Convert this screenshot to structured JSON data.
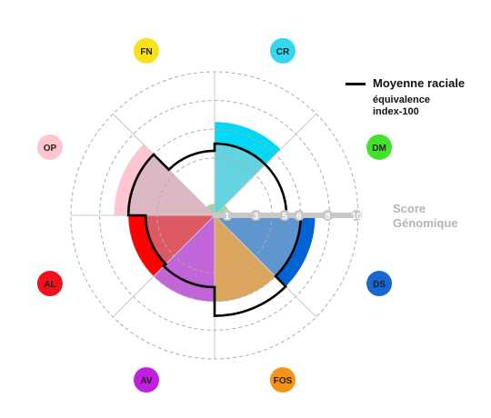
{
  "chart_data": {
    "type": "polar-bar",
    "title": "",
    "legend": {
      "line_label": "Moyenne raciale",
      "subtitle_1": "équivalence",
      "subtitle_2": "index-100",
      "placement": "top-right"
    },
    "axis_title_1": "Score",
    "axis_title_2": "Génomique",
    "r_ticks": [
      1,
      3,
      5,
      6,
      8,
      10
    ],
    "rmax": 10,
    "rings_dashed": [
      4,
      6,
      8,
      10
    ],
    "grid": true,
    "categories": [
      {
        "code": "CR",
        "value": 6.5,
        "average": 5,
        "color": "#00d8f5",
        "inner_color": "#62d3df",
        "badge": "#33d8f0"
      },
      {
        "code": "DM",
        "value": 1,
        "average": 5,
        "color": "#00c800",
        "inner_color": "#9cd6a0",
        "badge": "#44e02a"
      },
      {
        "code": "DS",
        "value": 7,
        "average": 6,
        "color": "#0064d2",
        "inner_color": "#5f96d0",
        "badge": "#1766d2"
      },
      {
        "code": "FOS",
        "value": 6,
        "average": 7,
        "color": "#dca660",
        "inner_color": "#dca660",
        "badge": "#f39417"
      },
      {
        "code": "AV",
        "value": 6,
        "average": 5,
        "color": "#c265d9",
        "inner_color": "#c265d9",
        "badge": "#c21ee0"
      },
      {
        "code": "AL",
        "value": 6,
        "average": 4.8,
        "color": "#ff0000",
        "inner_color": "#de5864",
        "badge": "#f0101e"
      },
      {
        "code": "OP",
        "value": 7,
        "average": 6,
        "color": "#ffc5d1",
        "inner_color": "#dcb8c2",
        "badge": "#ffc5cf"
      },
      {
        "code": "FN",
        "value": 0.8,
        "average": 4.5,
        "color": "#e2c800",
        "inner_color": "#9fd49a",
        "badge": "#f7e21a"
      }
    ]
  }
}
